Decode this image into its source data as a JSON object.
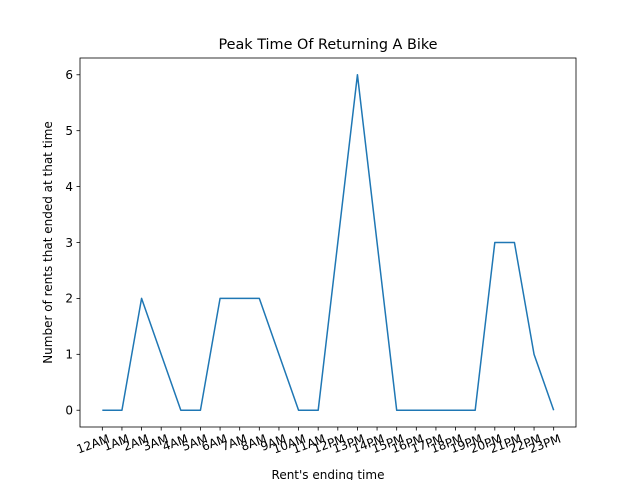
{
  "chart_data": {
    "type": "line",
    "title": "Peak Time Of Returning A Bike",
    "xlabel": "Rent's ending time",
    "ylabel": "Number of rents that ended at that time",
    "categories": [
      "12AM",
      "1AM",
      "2AM",
      "3AM",
      "4AM",
      "5AM",
      "6AM",
      "7AM",
      "8AM",
      "9AM",
      "10AM",
      "11AM",
      "12PM",
      "13PM",
      "14PM",
      "15PM",
      "16PM",
      "17PM",
      "18PM",
      "19PM",
      "20PM",
      "21PM",
      "22PM",
      "23PM"
    ],
    "series": [
      {
        "values": [
          0,
          0,
          2,
          1,
          0,
          0,
          2,
          2,
          2,
          1,
          0,
          0,
          3,
          6,
          3,
          0,
          0,
          0,
          0,
          0,
          3,
          3,
          1,
          0
        ]
      }
    ],
    "ylim": [
      -0.3,
      6.3
    ],
    "yticks": [
      0,
      1,
      2,
      3,
      4,
      5,
      6
    ],
    "grid": false,
    "line_color": "#1f77b4"
  }
}
